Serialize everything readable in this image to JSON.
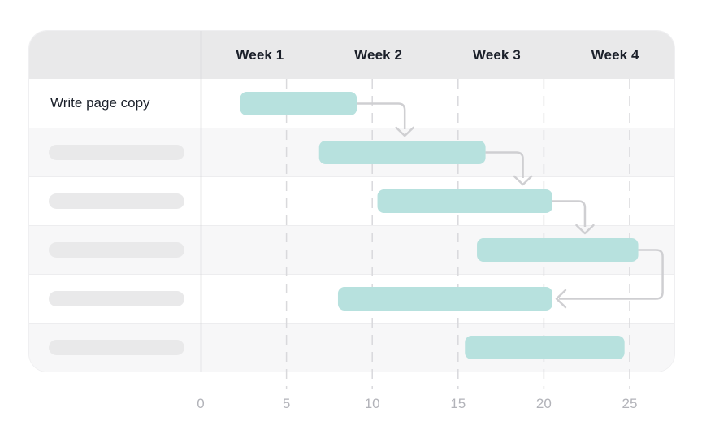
{
  "chart_data": {
    "type": "gantt",
    "title": "",
    "week_headers": [
      "Week 1",
      "Week 2",
      "Week 3",
      "Week 4"
    ],
    "x_ticks": [
      0,
      5,
      10,
      15,
      20,
      25
    ],
    "xlim": [
      0,
      27.6
    ],
    "grid": "dashed-vertical",
    "tasks": [
      {
        "name": "Write page copy",
        "placeholder": false,
        "start": 2.3,
        "end": 9.1
      },
      {
        "name": "",
        "placeholder": true,
        "start": 6.9,
        "end": 16.6
      },
      {
        "name": "",
        "placeholder": true,
        "start": 10.3,
        "end": 20.5
      },
      {
        "name": "",
        "placeholder": true,
        "start": 16.1,
        "end": 25.5
      },
      {
        "name": "",
        "placeholder": true,
        "start": 8.0,
        "end": 20.5
      },
      {
        "name": "",
        "placeholder": true,
        "start": 15.4,
        "end": 24.7
      }
    ],
    "dependencies": [
      {
        "from": 0,
        "to": 1,
        "arrow": "into-top"
      },
      {
        "from": 1,
        "to": 2,
        "arrow": "into-top"
      },
      {
        "from": 2,
        "to": 3,
        "arrow": "into-top"
      },
      {
        "from": 3,
        "to": 4,
        "arrow": "into-end"
      }
    ],
    "colors": {
      "bar": "#b7e1de",
      "arrow": "#cfcfd2",
      "grid_dashed": "#d9d9dc",
      "axis_zero_line": "#d2d2d6",
      "header_bg": "#e9e9ea",
      "row_alt_bg": "#f7f7f8",
      "skeleton_pill": "#e9e9ea",
      "header_text": "#1b202a",
      "tick_text": "#b2b3b9"
    }
  }
}
